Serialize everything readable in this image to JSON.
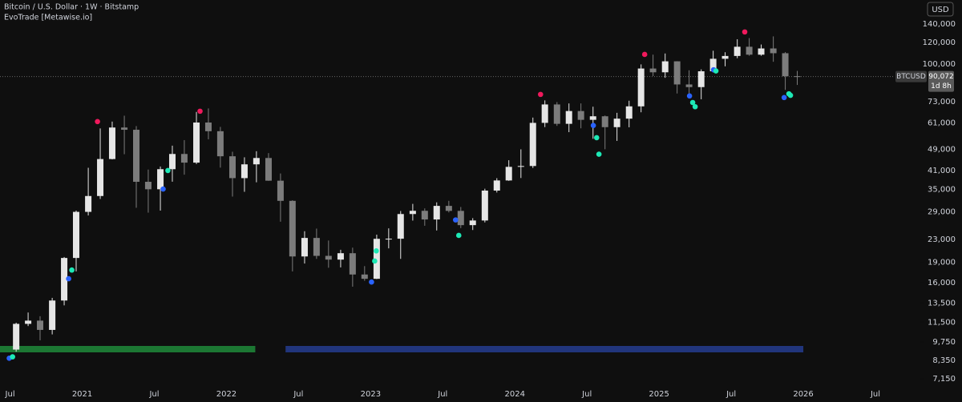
{
  "chart_data": {
    "type": "candlestick",
    "title": "Bitcoin / U.S. Dollar · 1W · Bitstamp",
    "subtitle": "EvoTrade [Metawise.io]",
    "currency_button": "USD",
    "symbol_label": "BTCUSD",
    "last_price": 90072,
    "last_price_label": "90,072",
    "countdown": "1d 8h",
    "log_scale": true,
    "up_color": "#e6e6e6",
    "down_color": "#7c7c7c",
    "xlim": [
      2020.43,
      2026.6
    ],
    "xticks": [
      {
        "value": 2020.5,
        "label": "Jul"
      },
      {
        "value": 2021,
        "label": "2021"
      },
      {
        "value": 2021.5,
        "label": "Jul"
      },
      {
        "value": 2022,
        "label": "2022"
      },
      {
        "value": 2022.5,
        "label": "Jul"
      },
      {
        "value": 2023,
        "label": "2023"
      },
      {
        "value": 2023.5,
        "label": "Jul"
      },
      {
        "value": 2024,
        "label": "2024"
      },
      {
        "value": 2024.5,
        "label": "Jul"
      },
      {
        "value": 2025,
        "label": "2025"
      },
      {
        "value": 2025.5,
        "label": "Jul"
      },
      {
        "value": 2026,
        "label": "2026"
      },
      {
        "value": 2026.5,
        "label": "Jul"
      }
    ],
    "ylim": [
      5890,
      171200
    ],
    "yticks": [
      {
        "value": 140000,
        "label": "140,000"
      },
      {
        "value": 120000,
        "label": "120,000"
      },
      {
        "value": 100000,
        "label": "100,000"
      },
      {
        "value": 73000,
        "label": "73,000"
      },
      {
        "value": 61000,
        "label": "61,000"
      },
      {
        "value": 49000,
        "label": "49,000"
      },
      {
        "value": 41000,
        "label": "41,000"
      },
      {
        "value": 35000,
        "label": "35,000"
      },
      {
        "value": 29000,
        "label": "29,000"
      },
      {
        "value": 23000,
        "label": "23,000"
      },
      {
        "value": 19000,
        "label": "19,000"
      },
      {
        "value": 16000,
        "label": "16,000"
      },
      {
        "value": 13500,
        "label": "13,500"
      },
      {
        "value": 11500,
        "label": "11,500"
      },
      {
        "value": 9750,
        "label": "9,750"
      },
      {
        "value": 8350,
        "label": "8,350"
      },
      {
        "value": 7150,
        "label": "7,150"
      }
    ],
    "x": [
      2020.542,
      2020.625,
      2020.708,
      2020.792,
      2020.875,
      2020.958,
      2021.042,
      2021.125,
      2021.208,
      2021.292,
      2021.375,
      2021.458,
      2021.542,
      2021.625,
      2021.708,
      2021.792,
      2021.875,
      2021.958,
      2022.042,
      2022.125,
      2022.208,
      2022.292,
      2022.375,
      2022.458,
      2022.542,
      2022.625,
      2022.708,
      2022.792,
      2022.875,
      2022.958,
      2023.042,
      2023.125,
      2023.208,
      2023.292,
      2023.375,
      2023.458,
      2023.542,
      2023.625,
      2023.708,
      2023.792,
      2023.875,
      2023.958,
      2024.042,
      2024.125,
      2024.208,
      2024.292,
      2024.375,
      2024.458,
      2024.542,
      2024.625,
      2024.708,
      2024.792,
      2024.875,
      2024.958,
      2025.042,
      2025.125,
      2025.208,
      2025.292,
      2025.375,
      2025.458,
      2025.542,
      2025.625,
      2025.708,
      2025.792,
      2025.875,
      2025.958
    ],
    "open": [
      9140,
      11340,
      11650,
      10780,
      13790,
      19700,
      28990,
      33110,
      45140,
      58790,
      57700,
      37300,
      35040,
      41460,
      47100,
      43800,
      61300,
      57000,
      46200,
      38470,
      43180,
      45540,
      37650,
      31800,
      19950,
      23300,
      20050,
      19430,
      20500,
      17150,
      16540,
      23130,
      23150,
      28470,
      29250,
      27200,
      30480,
      29230,
      25940,
      26970,
      34650,
      37720,
      42280,
      42580,
      61130,
      71330,
      60640,
      67500,
      62700,
      64600,
      58970,
      63330,
      70200,
      96400,
      93400,
      102400,
      84350,
      82500,
      94200,
      104600,
      107100,
      115700,
      108250,
      114050,
      109600,
      90400
    ],
    "high": [
      11450,
      12470,
      12090,
      14100,
      19860,
      29300,
      41950,
      58350,
      61790,
      64900,
      59500,
      41330,
      42400,
      50500,
      52900,
      67000,
      69000,
      59100,
      47990,
      45800,
      48200,
      47450,
      40000,
      31950,
      24650,
      25200,
      22800,
      21100,
      21480,
      18400,
      23950,
      25250,
      29200,
      31000,
      29850,
      31400,
      31800,
      30200,
      27500,
      35200,
      38450,
      44700,
      48970,
      63900,
      73800,
      72750,
      71950,
      71950,
      70000,
      65000,
      66500,
      73600,
      99800,
      108300,
      109350,
      102500,
      95000,
      95700,
      111900,
      110500,
      123200,
      124400,
      117900,
      126200,
      110600,
      94500
    ],
    "low": [
      8980,
      11130,
      9880,
      10380,
      13240,
      17600,
      28130,
      32300,
      45000,
      47000,
      30000,
      28800,
      29300,
      37330,
      39600,
      43300,
      53250,
      42000,
      32950,
      34300,
      37150,
      37600,
      26700,
      17600,
      18800,
      19550,
      18150,
      18200,
      15480,
      16270,
      16500,
      21350,
      19550,
      26950,
      25800,
      24800,
      28850,
      25300,
      24900,
      26540,
      34100,
      37600,
      38500,
      41880,
      59000,
      59600,
      56550,
      58400,
      53500,
      49000,
      52550,
      58900,
      66800,
      90500,
      89200,
      78200,
      76600,
      74500,
      93300,
      98200,
      105100,
      107300,
      107300,
      102000,
      80600,
      84000
    ],
    "close": [
      11340,
      11650,
      10780,
      13790,
      19700,
      28990,
      33110,
      45140,
      58790,
      57700,
      37300,
      35040,
      41460,
      47100,
      43800,
      61300,
      57000,
      46200,
      38470,
      43180,
      45540,
      37650,
      31800,
      19950,
      23300,
      20050,
      19430,
      20500,
      17150,
      16540,
      23130,
      23150,
      28470,
      29250,
      27200,
      30480,
      29230,
      25940,
      26970,
      34650,
      37720,
      42280,
      42580,
      61130,
      71330,
      60640,
      67500,
      62700,
      64600,
      58970,
      63330,
      70200,
      96400,
      93400,
      102400,
      84350,
      82500,
      94200,
      104600,
      107100,
      115700,
      108250,
      114050,
      109600,
      90400,
      90072
    ],
    "signals": [
      {
        "color": "#f0195c",
        "x": [
          2021.106,
          2021.817,
          2024.178,
          2024.9,
          2025.594
        ],
        "values": [
          61800,
          67400,
          77600,
          108500,
          131000
        ]
      },
      {
        "color": "#2962ff",
        "x": [
          2020.494,
          2020.906,
          2021.561,
          2023.006,
          2023.589,
          2024.544,
          2025.211,
          2025.378,
          2025.867
        ],
        "values": [
          8500,
          16550,
          35100,
          16100,
          27100,
          59800,
          76600,
          95400,
          75600
        ]
      },
      {
        "color": "#1de9b6",
        "x": [
          2020.517,
          2020.928,
          2021.594,
          2023.039,
          2023.028,
          2023.611,
          2024.567,
          2024.583,
          2025.233,
          2025.25,
          2025.394,
          2025.9,
          2025.911
        ],
        "values": [
          8600,
          17800,
          41000,
          20900,
          19200,
          23800,
          54000,
          47000,
          72500,
          70000,
          94500,
          78000,
          77000
        ]
      }
    ],
    "regimes": [
      {
        "color": "#1f8a3a",
        "start": 2020.43,
        "end": 2022.2
      },
      {
        "color": "#243c8f",
        "start": 2022.41,
        "end": 2026.0
      }
    ]
  }
}
